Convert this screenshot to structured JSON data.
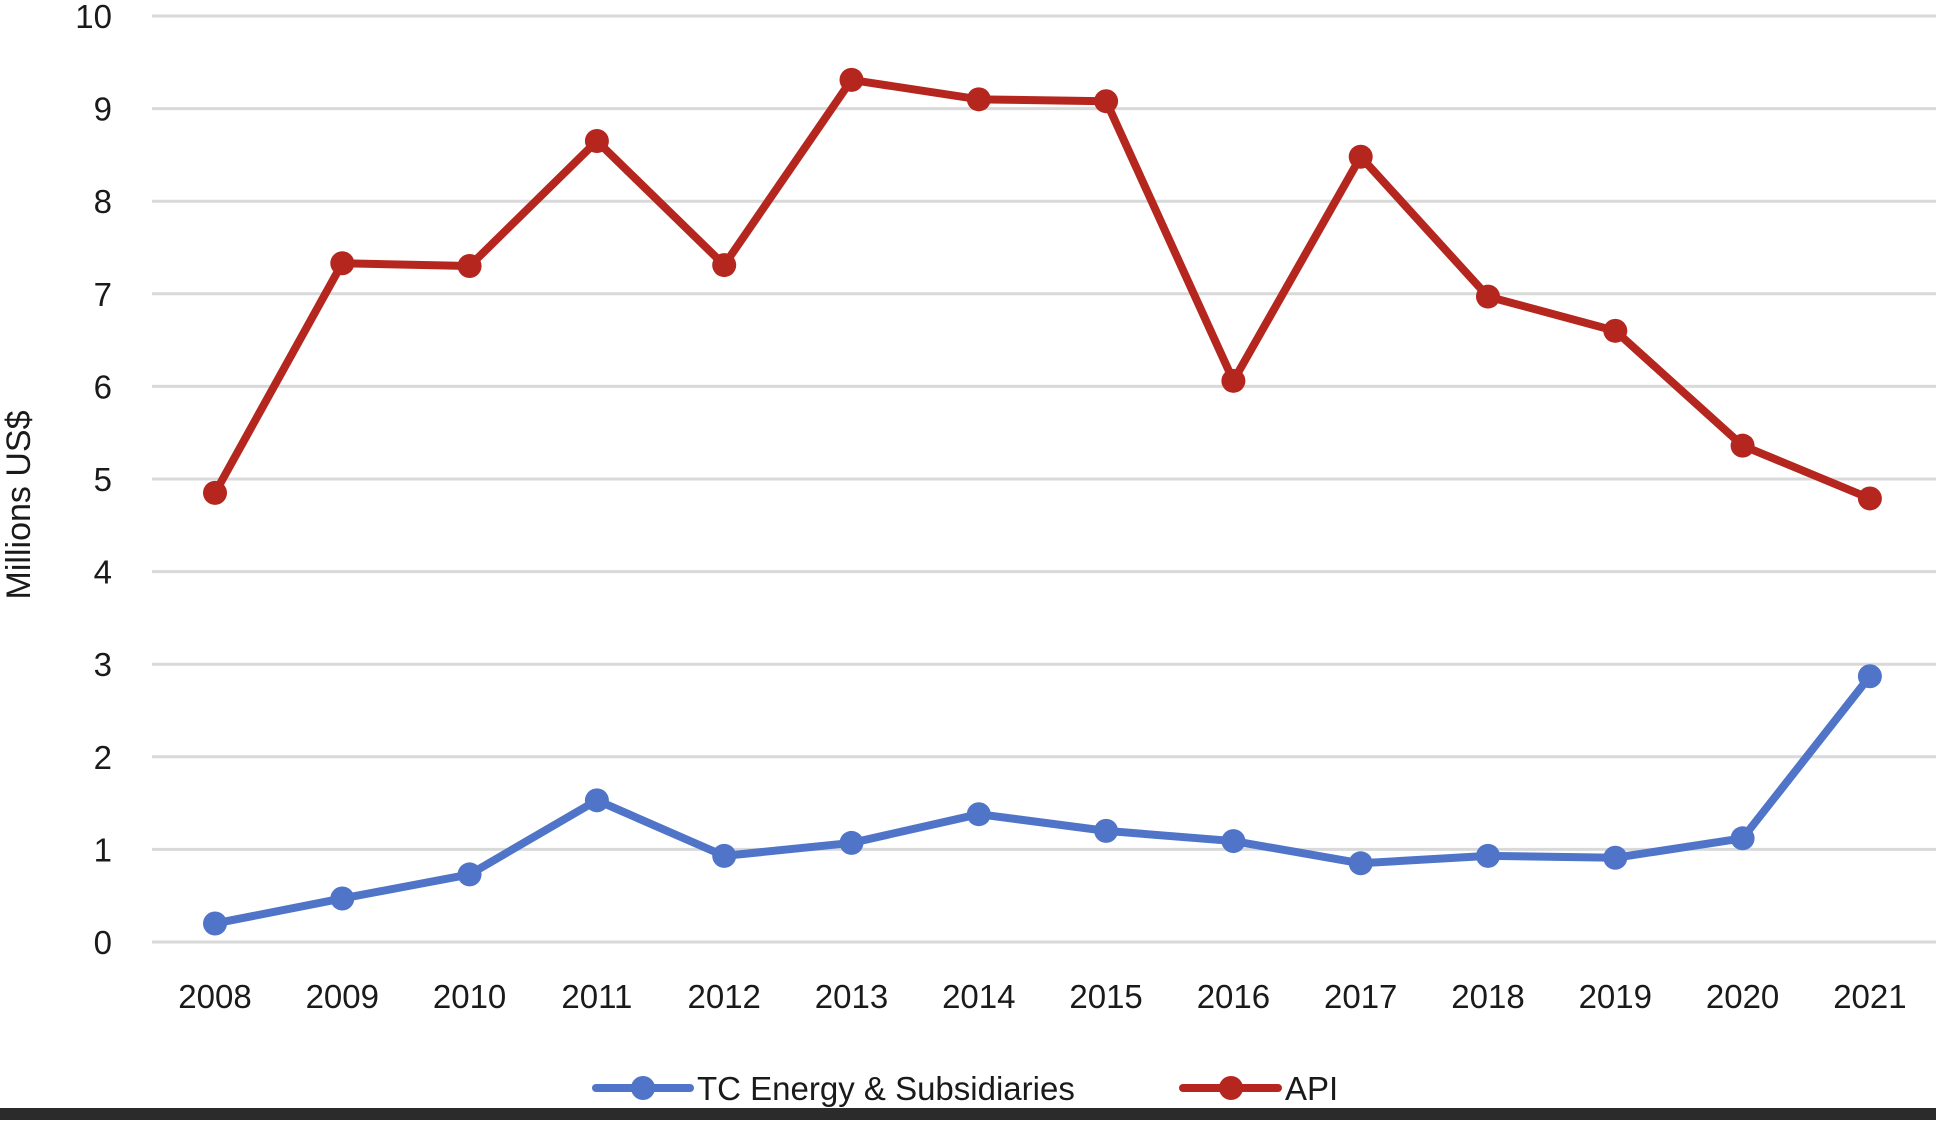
{
  "colors": {
    "tc_series": "#4f74c8",
    "api_series": "#b5261e",
    "grid": "#d9d9d9",
    "text": "#1a1a1a",
    "background": "#ffffff"
  },
  "chart_data": {
    "type": "line",
    "title": "",
    "xlabel": "",
    "ylabel": "Millions US$",
    "ylim": [
      0,
      10
    ],
    "yticks": [
      "0",
      "1",
      "2",
      "3",
      "4",
      "5",
      "6",
      "7",
      "8",
      "9",
      "10"
    ],
    "grid": true,
    "legend_position": "bottom",
    "categories": [
      "2008",
      "2009",
      "2010",
      "2011",
      "2012",
      "2013",
      "2014",
      "2015",
      "2016",
      "2017",
      "2018",
      "2019",
      "2020",
      "2021"
    ],
    "series": [
      {
        "name": "TC Energy & Subsidiaries",
        "color": "#4f74c8",
        "values": [
          0.2,
          0.47,
          0.73,
          1.53,
          0.93,
          1.07,
          1.38,
          1.2,
          1.09,
          0.85,
          0.93,
          0.91,
          1.12,
          2.87
        ]
      },
      {
        "name": "API",
        "color": "#b5261e",
        "values": [
          4.85,
          7.33,
          7.3,
          8.65,
          7.31,
          9.31,
          9.1,
          9.08,
          6.06,
          8.48,
          6.97,
          6.6,
          5.36,
          4.79
        ]
      }
    ]
  }
}
